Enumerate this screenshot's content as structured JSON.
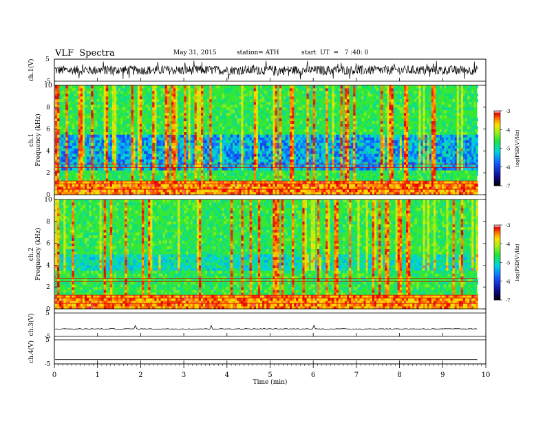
{
  "header": {
    "title": "VLF  Spectra",
    "date": "May 31, 2015",
    "station": "station= ATH",
    "start_ut": "start  UT  =   7 :40: 0"
  },
  "chart_data": {
    "type": "heatmap",
    "title": "VLF  Spectra",
    "xlabel": "Time  (min)",
    "xlim": [
      0,
      10
    ],
    "x_ticks": [
      "0",
      "1",
      "2",
      "3",
      "4",
      "5",
      "6",
      "7",
      "8",
      "9",
      "10"
    ],
    "data_end_min": 9.8,
    "panels": [
      {
        "id": "ch1-waveform",
        "ylabel": "ch.1(V)",
        "ylim": [
          -5,
          5
        ],
        "y_ticks": [
          "5",
          "-5"
        ]
      },
      {
        "id": "ch1-spectrogram",
        "ylabel_top": "ch.1",
        "ylabel": "Frequency  (kHz)",
        "ylim": [
          0,
          10
        ],
        "y_ticks": [
          "0",
          "2",
          "4",
          "6",
          "8",
          "10"
        ],
        "colorbar": {
          "label": "log(PSD(V²/Hz)",
          "ticks": [
            "-3",
            "-4",
            "-5",
            "-6",
            "-7"
          ],
          "range": [
            -7,
            -3
          ]
        }
      },
      {
        "id": "ch2-spectrogram",
        "ylabel_top": "ch.2",
        "ylabel": "Frequency  (kHz)",
        "ylim": [
          0,
          10
        ],
        "y_ticks": [
          "0",
          "2",
          "4",
          "6",
          "8",
          "10"
        ],
        "colorbar": {
          "label": "log(PSD(V²/Hz)",
          "ticks": [
            "-3",
            "-4",
            "-5",
            "-6",
            "-7"
          ],
          "range": [
            -7,
            -3
          ]
        }
      },
      {
        "id": "ch3-waveform",
        "ylabel": "ch.3(V)",
        "ylim": [
          -5,
          5
        ],
        "y_ticks": [
          "5",
          "-5"
        ]
      },
      {
        "id": "ch4-waveform",
        "ylabel": "ch.4(V)",
        "ylim": [
          -5,
          5
        ],
        "y_ticks": [
          "5",
          "-5"
        ]
      }
    ]
  }
}
